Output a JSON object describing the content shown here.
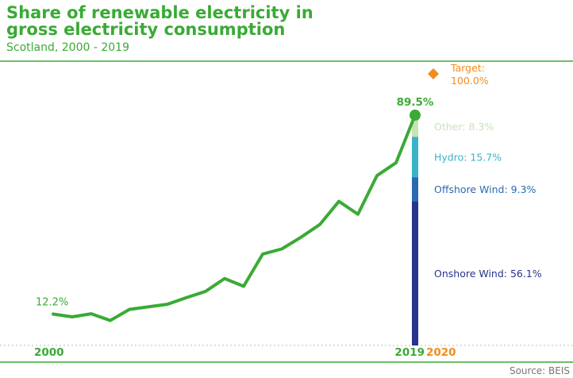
{
  "title_line1": "Share of renewable electricity in",
  "title_line2": "gross electricity consumption",
  "subtitle": "Scotland, 2000 - 2019",
  "source": "Source: BEIS",
  "colors": {
    "green": "#3aaa35",
    "target": "#f28c1e",
    "other": "#c6e3b8",
    "hydro": "#3bb3c7",
    "offshore": "#2a6ab0",
    "onshore": "#27348b",
    "axis": "#3aaa35"
  },
  "chart_data": {
    "type": "line",
    "title": "Share of renewable electricity in gross electricity consumption",
    "subtitle": "Scotland, 2000 - 2019",
    "x_tick_labels": [
      "2000",
      "2019",
      "2020"
    ],
    "xlim": [
      2000,
      2020
    ],
    "ylim": [
      0,
      100
    ],
    "series": [
      {
        "x": [
          2000,
          2001,
          2002,
          2003,
          2004,
          2005,
          2006,
          2007,
          2008,
          2009,
          2010,
          2011,
          2012,
          2013,
          2014,
          2015,
          2016,
          2017,
          2018,
          2019
        ],
        "values": [
          12.2,
          11.1,
          12.3,
          9.7,
          14.0,
          15.0,
          16.0,
          18.6,
          21.0,
          26.0,
          23.0,
          35.5,
          37.5,
          42.0,
          47.0,
          56.0,
          51.0,
          66.0,
          71.0,
          89.5
        ]
      }
    ],
    "stacked_breakdown_2019": [
      {
        "label": "Onshore Wind: 56.1%",
        "value": 56.1,
        "color": "#27348b"
      },
      {
        "label": "Offshore Wind: 9.3%",
        "value": 9.3,
        "color": "#2a6ab0"
      },
      {
        "label": "Hydro: 15.7%",
        "value": 15.7,
        "color": "#3bb3c7"
      },
      {
        "label": "Other: 8.3%",
        "value": 8.3,
        "color": "#c6e3b8"
      }
    ],
    "annotations": {
      "start_label": "12.2%",
      "end_label": "89.5%",
      "target_label_line1": "Target:",
      "target_label_line2": "100.0%",
      "target_value": 100.0
    }
  }
}
